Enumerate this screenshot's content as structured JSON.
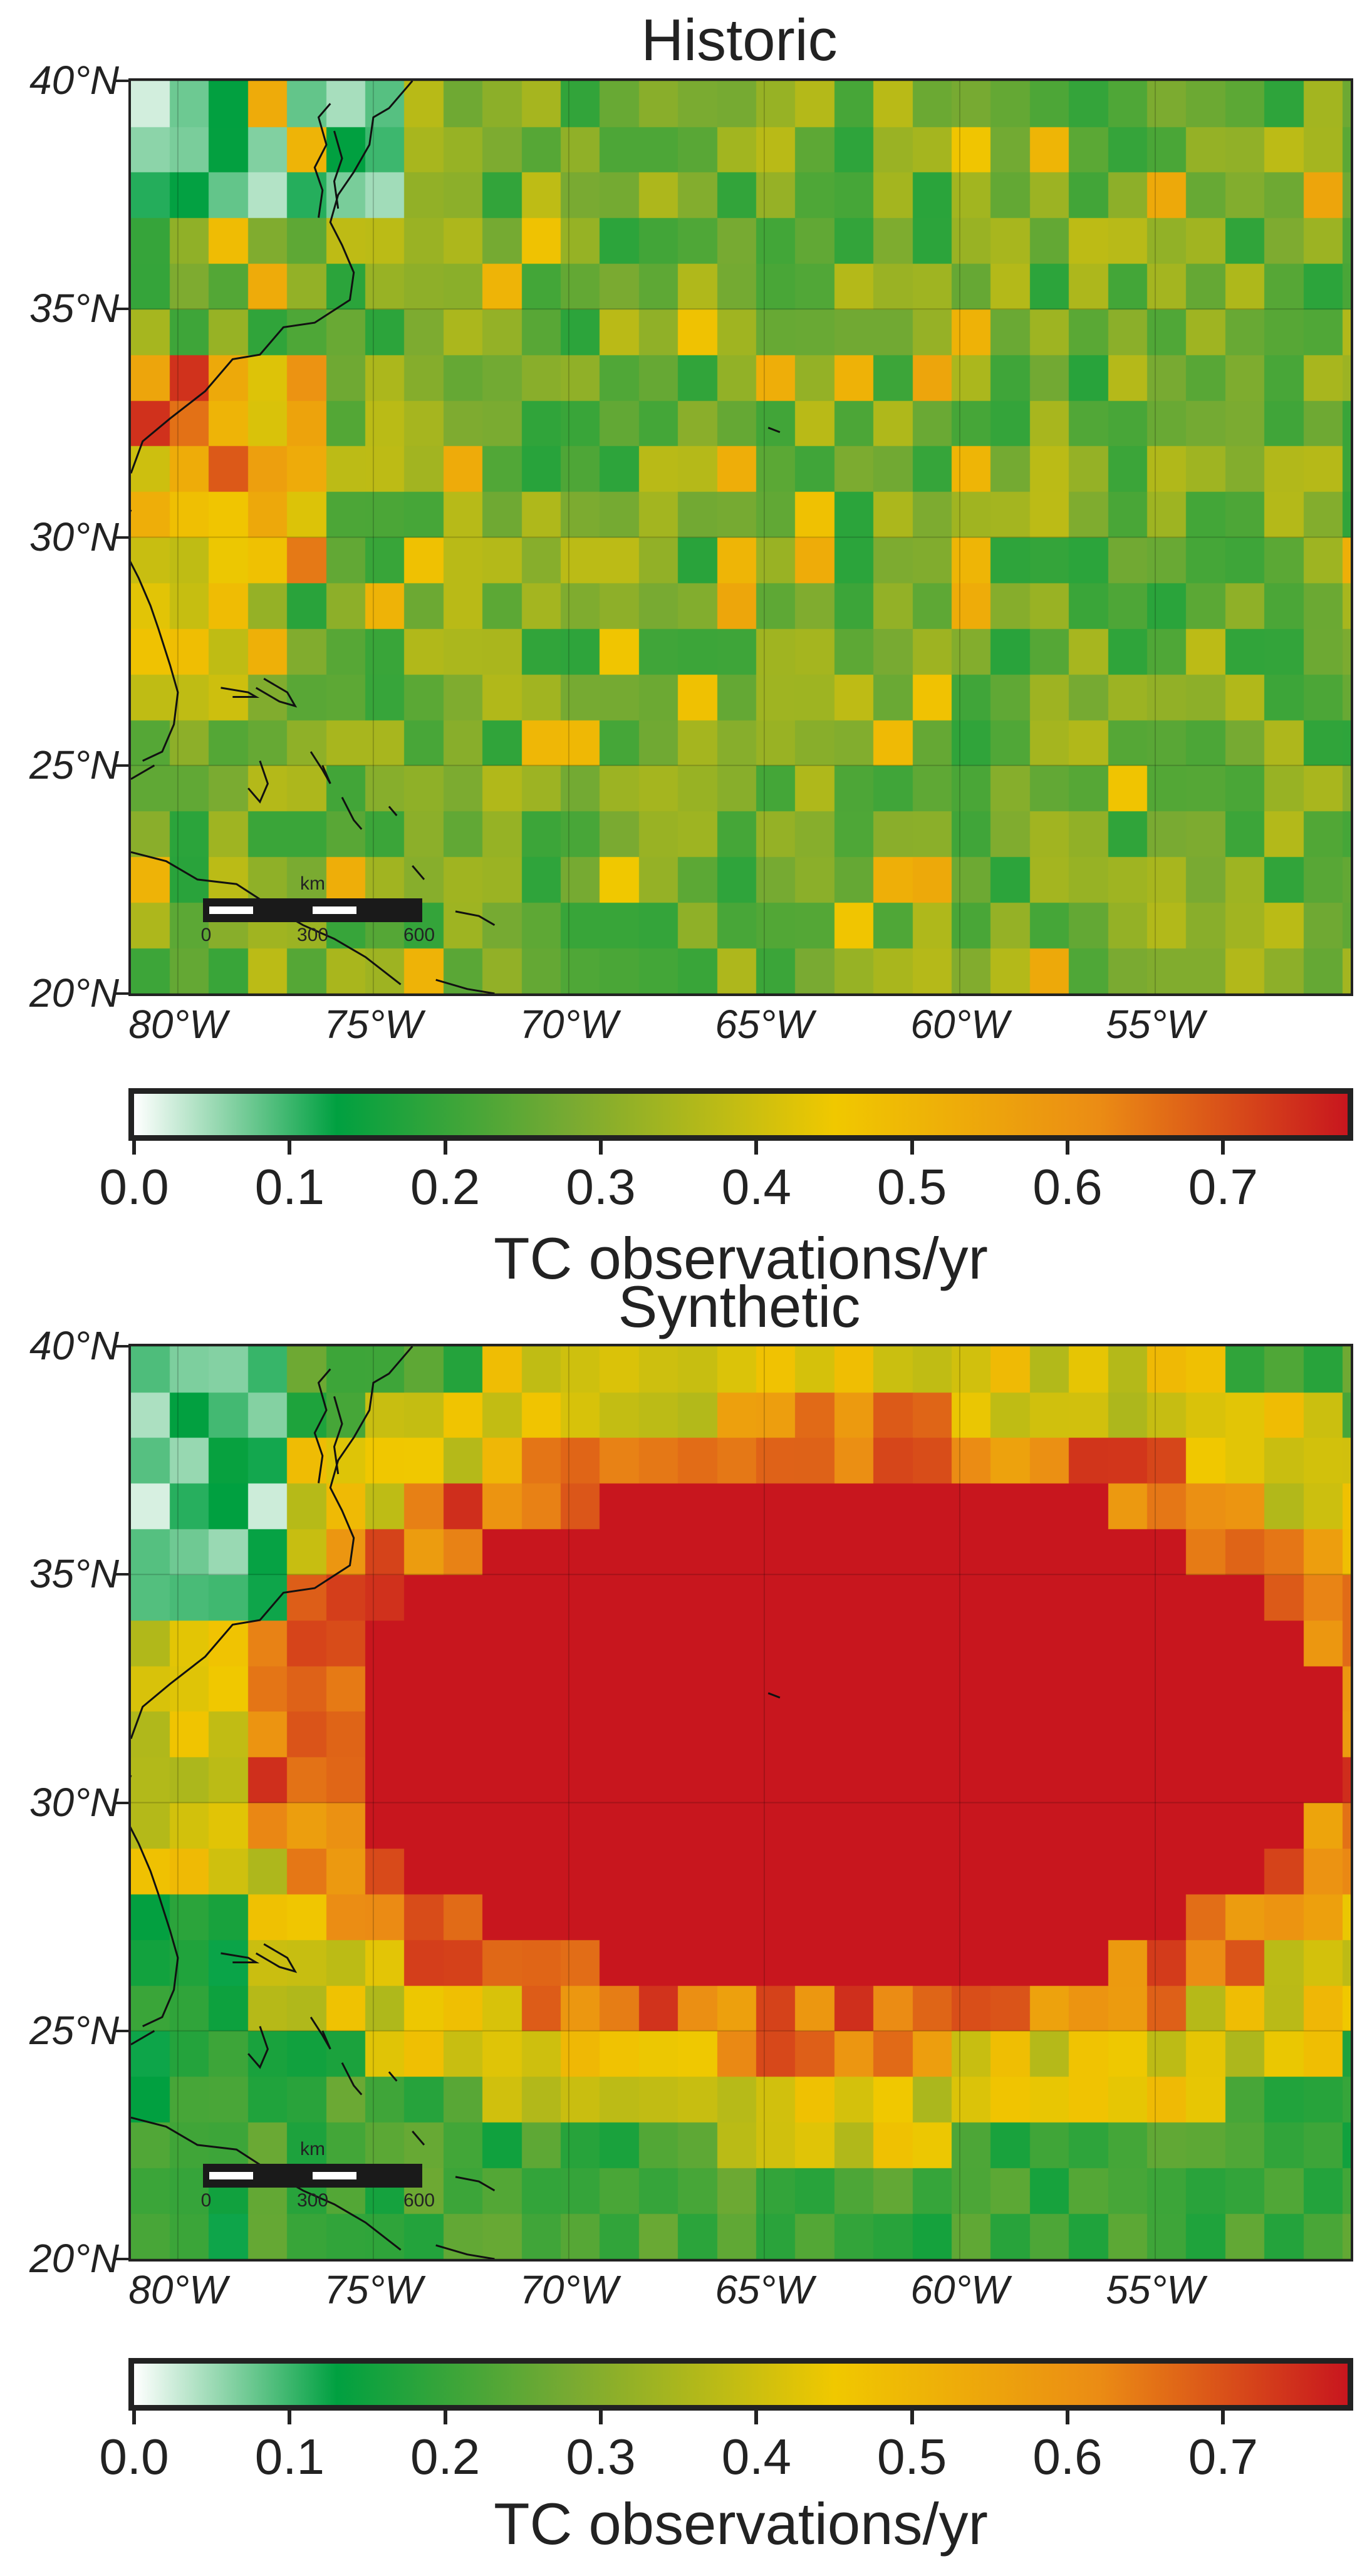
{
  "panels": [
    {
      "id": "historic",
      "title": "Historic",
      "colorbar_label": "TC observations/yr"
    },
    {
      "id": "synthetic",
      "title": "Synthetic",
      "colorbar_label": "TC observations/yr"
    }
  ],
  "axes": {
    "lat_labels": [
      "40°N",
      "35°N",
      "30°N",
      "25°N",
      "20°N"
    ],
    "lat_values": [
      40,
      35,
      30,
      25,
      20
    ],
    "lon_labels": [
      "80°W",
      "75°W",
      "70°W",
      "65°W",
      "60°W",
      "55°W"
    ],
    "lon_values": [
      -80,
      -75,
      -70,
      -65,
      -60,
      -55
    ],
    "lon_range": [
      -81.2,
      -50.0
    ],
    "lat_range": [
      20,
      40
    ]
  },
  "colorbar": {
    "ticks": [
      "0.0",
      "0.1",
      "0.2",
      "0.3",
      "0.4",
      "0.5",
      "0.6",
      "0.7"
    ],
    "tick_values": [
      0,
      0.1,
      0.2,
      0.3,
      0.4,
      0.5,
      0.6,
      0.7
    ],
    "range": [
      0,
      0.78
    ],
    "colormap": [
      "#ffffff",
      "#00a040",
      "#f0c800",
      "#c8161e"
    ]
  },
  "scalebar": {
    "unit": "km",
    "labels": [
      "0",
      "300",
      "600"
    ]
  },
  "chart_data": [
    {
      "type": "heatmap",
      "title": "Historic",
      "colorbar_label": "TC observations/yr",
      "grid": "1-degree cells over 81°W–50°W, 20°N–40°N",
      "value_range": [
        0,
        0.78
      ]
    },
    {
      "type": "heatmap",
      "title": "Synthetic",
      "colorbar_label": "TC observations/yr",
      "grid": "1-degree cells over 81°W–50°W, 20°N–40°N",
      "value_range": [
        0,
        0.78
      ]
    }
  ]
}
